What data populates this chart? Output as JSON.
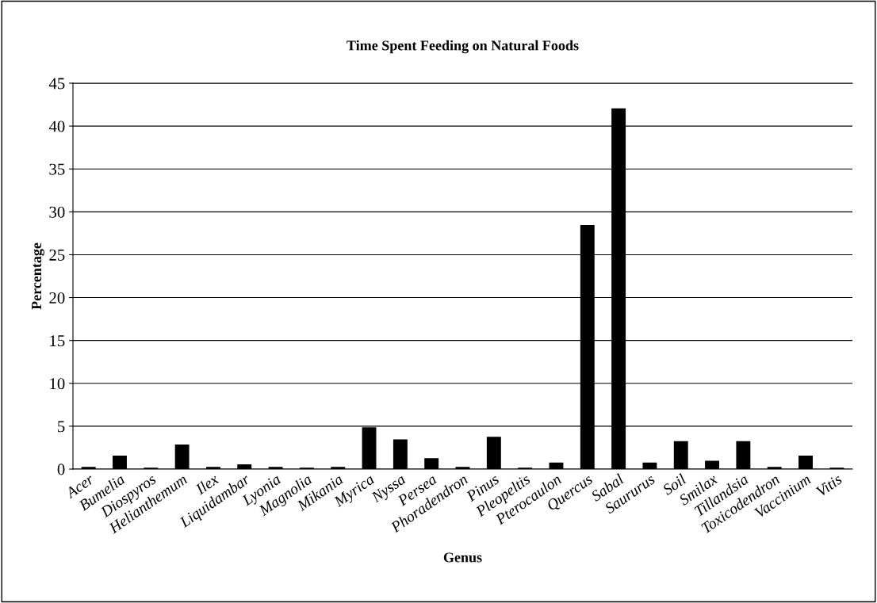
{
  "chart_data": {
    "type": "bar",
    "title": "Time Spent Feeding on Natural Foods",
    "xlabel": "Genus",
    "ylabel": "Percentage",
    "categories": [
      "Acer",
      "Bumelia",
      "Diospyros",
      "Helianthemum",
      "Ilex",
      "Liquidambar",
      "Lyonia",
      "Magnolia",
      "Mikania",
      "Myrica",
      "Nyssa",
      "Persea",
      "Phoradendron",
      "Pinus",
      "Pleopeltis",
      "Pterocaulon",
      "Quercus",
      "Sabal",
      "Saururus",
      "Soil",
      "Smilax",
      "Tillandsia",
      "Toxicodendron",
      "Vaccinium",
      "Vitis"
    ],
    "values": [
      0.2,
      1.5,
      0.1,
      2.8,
      0.2,
      0.5,
      0.2,
      0.1,
      0.2,
      4.8,
      3.4,
      1.2,
      0.2,
      3.7,
      0.1,
      0.7,
      28.4,
      42,
      0.7,
      3.2,
      0.9,
      3.2,
      0.2,
      1.5,
      0.1
    ],
    "color": "#000000",
    "ylim": [
      0,
      45
    ],
    "yticks": [
      0,
      5,
      10,
      15,
      20,
      25,
      30,
      35,
      40,
      45
    ],
    "grid": "y",
    "legend": false
  }
}
